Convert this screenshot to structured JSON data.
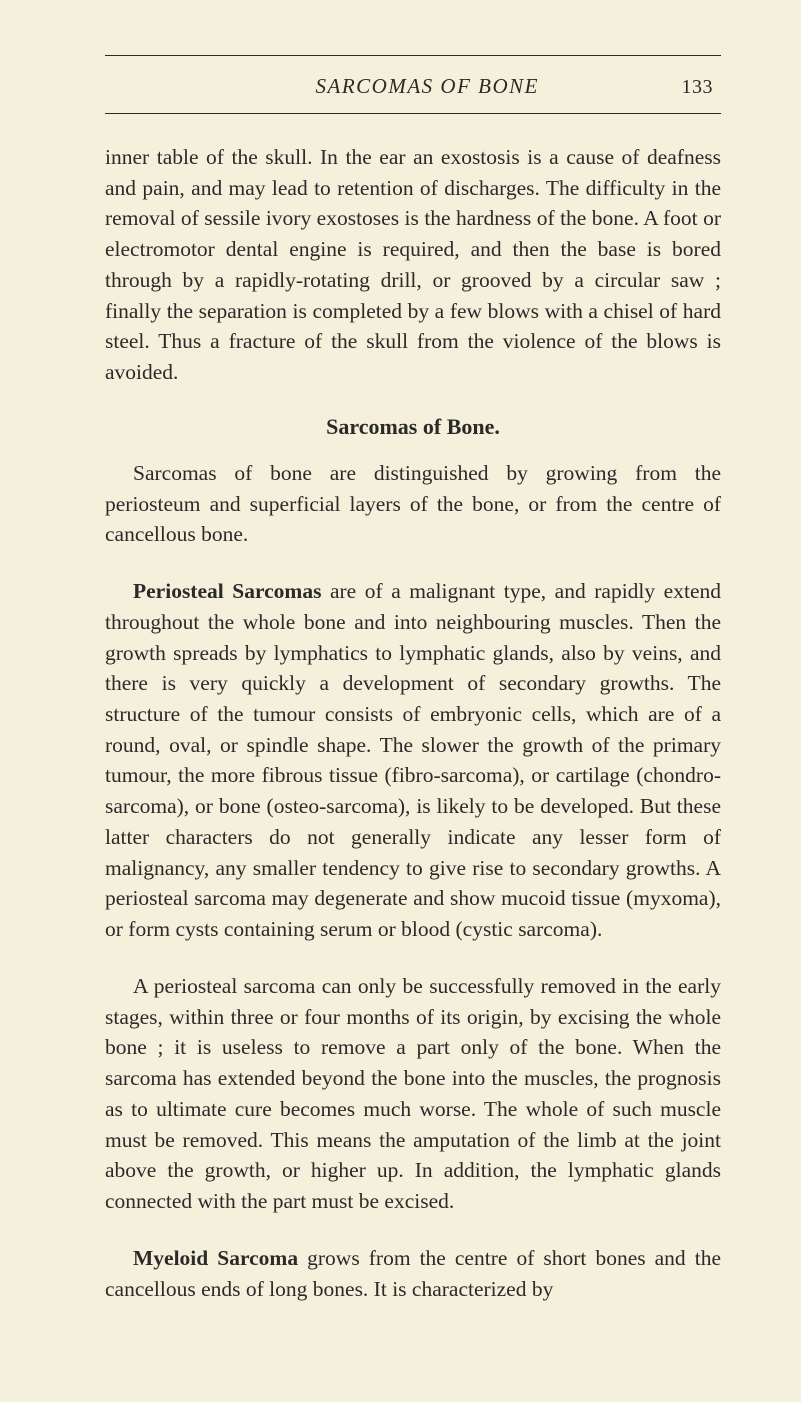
{
  "colors": {
    "pageBackground": "#f5f0db",
    "textColor": "#2a2a28",
    "ruleColor": "#2a2a28"
  },
  "typography": {
    "bodyFontSize": 21.5,
    "headerFontSize": 21,
    "sectionHeadingFontSize": 22,
    "lineHeight": 1.43,
    "indentPx": 28
  },
  "header": {
    "runningTitle": "SARCOMAS OF BONE",
    "pageNumber": "133"
  },
  "paragraphs": {
    "p1": "inner table of the skull. In the ear an exostosis is a cause of deafness and pain, and may lead to retention of discharges. The difficulty in the removal of sessile ivory exostoses is the hardness of the bone. A foot or electromotor dental engine is required, and then the base is bored through by a rapidly-rotating drill, or grooved by a circular saw ; finally the separation is completed by a few blows with a chisel of hard steel. Thus a fracture of the skull from the violence of the blows is avoided.",
    "sectionHeading": "Sarcomas of Bone.",
    "p2": "Sarcomas of bone are distinguished by growing from the periosteum and superficial layers of the bone, or from the centre of cancellous bone.",
    "p3_bold": "Periosteal Sarcomas",
    "p3_rest": " are of a malignant type, and rapidly extend throughout the whole bone and into neighbouring muscles. Then the growth spreads by lymphatics to lymphatic glands, also by veins, and there is very quickly a development of secondary growths. The structure of the tumour consists of embryonic cells, which are of a round, oval, or spindle shape. The slower the growth of the primary tumour, the more fibrous tissue (fibro-sarcoma), or cartilage (chondro-sarcoma), or bone (osteo-sarcoma), is likely to be developed. But these latter characters do not generally indicate any lesser form of malignancy, any smaller tendency to give rise to secondary growths. A periosteal sarcoma may degenerate and show mucoid tissue (myxoma), or form cysts containing serum or blood (cystic sarcoma).",
    "p4": "A periosteal sarcoma can only be successfully removed in the early stages, within three or four months of its origin, by excising the whole bone ; it is useless to remove a part only of the bone. When the sarcoma has extended beyond the bone into the muscles, the prognosis as to ultimate cure becomes much worse. The whole of such muscle must be removed. This means the amputation of the limb at the joint above the growth, or higher up. In addition, the lymphatic glands connected with the part must be excised.",
    "p5_bold": "Myeloid Sarcoma",
    "p5_rest": " grows from the centre of short bones and the cancellous ends of long bones. It is characterized by"
  }
}
